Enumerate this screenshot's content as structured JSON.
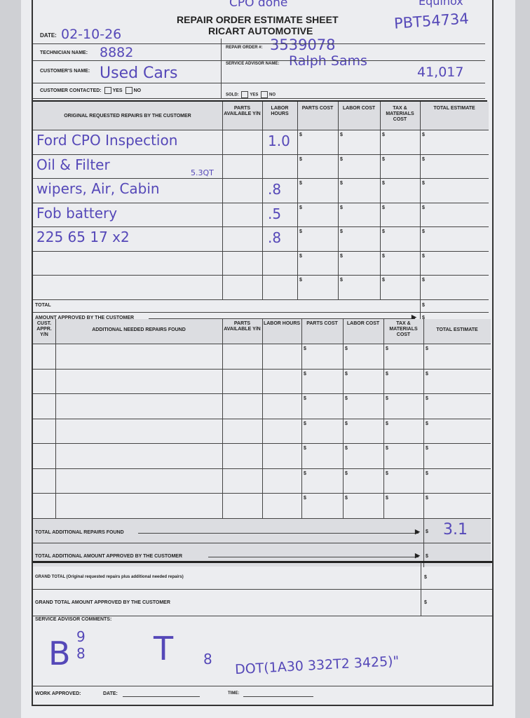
{
  "header": {
    "title": "REPAIR ORDER ESTIMATE SHEET",
    "company": "RICART AUTOMOTIVE",
    "note_top": "CPO done",
    "note_top_right": "Equinox",
    "stock_number": "PBT54734",
    "date_label": "DATE:",
    "date_value": "02-10-26",
    "technician_label": "TECHNICIAN NAME:",
    "technician_value": "8882",
    "customer_label": "CUSTOMER'S NAME:",
    "customer_value": "Used Cars",
    "contacted_label": "CUSTOMER CONTACTED:",
    "yes_label": "YES",
    "no_label": "NO",
    "repair_order_label": "REPAIR ORDER #:",
    "repair_order_value": "3539078",
    "advisor_label": "SERVICE ADVISOR NAME:",
    "advisor_value": "Ralph Sams",
    "mileage_value": "41,017",
    "sold_label": "SOLD:"
  },
  "original_table": {
    "headers": [
      "ORIGINAL REQUESTED REPAIRS BY THE CUSTOMER",
      "PARTS AVAILABLE Y/N",
      "LABOR HOURS",
      "PARTS COST",
      "LABOR COST",
      "TAX & MATERIALS COST",
      "TOTAL ESTIMATE"
    ],
    "rows": [
      {
        "repair": "Ford CPO Inspection",
        "note": "",
        "hours": "1.0"
      },
      {
        "repair": "Oil & Filter",
        "note": "5.3QT",
        "hours": ""
      },
      {
        "repair": "wipers, Air, Cabin",
        "note": "",
        "hours": ".8"
      },
      {
        "repair": "Fob battery",
        "note": "",
        "hours": ".5"
      },
      {
        "repair": "225 65 17   x2",
        "note": "",
        "hours": ".8"
      },
      {
        "repair": "",
        "note": "",
        "hours": ""
      },
      {
        "repair": "",
        "note": "",
        "hours": ""
      }
    ],
    "total_label": "TOTAL",
    "approved_label": "AMOUNT APPROVED BY THE CUSTOMER"
  },
  "additional_table": {
    "headers": [
      "CUST. APPR. Y/N",
      "ADDITIONAL NEEDED REPAIRS FOUND",
      "PARTS AVAILABLE Y/N",
      "LABOR HOURS",
      "PARTS COST",
      "LABOR COST",
      "TAX & MATERIALS COST",
      "TOTAL ESTIMATE"
    ],
    "row_count": 7,
    "total_found_label": "TOTAL ADDITIONAL REPAIRS FOUND",
    "total_found_value": "3.1",
    "total_approved_label": "TOTAL ADDITIONAL AMOUNT APPROVED BY THE CUSTOMER"
  },
  "footer": {
    "grand_total_label": "GRAND TOTAL (Original requested repairs plus additional needed repairs)",
    "grand_total_approved_label": "GRAND TOTAL AMOUNT APPROVED BY THE CUSTOMER",
    "comments_label": "SERVICE ADVISOR COMMENTS:",
    "comments_brakes": "B",
    "comments_brakes_front": "9",
    "comments_brakes_rear": "8",
    "comments_tires": "T",
    "comments_tires_value": "8",
    "comments_dot": "DOT(1A30 332T2 3425)\"",
    "work_approved_label": "WORK APPROVED:",
    "date_label": "DATE:",
    "time_label": "TIME:"
  },
  "currency_symbol": "$",
  "colors": {
    "ink": "#5548b8",
    "paper": "#ecedf0"
  }
}
